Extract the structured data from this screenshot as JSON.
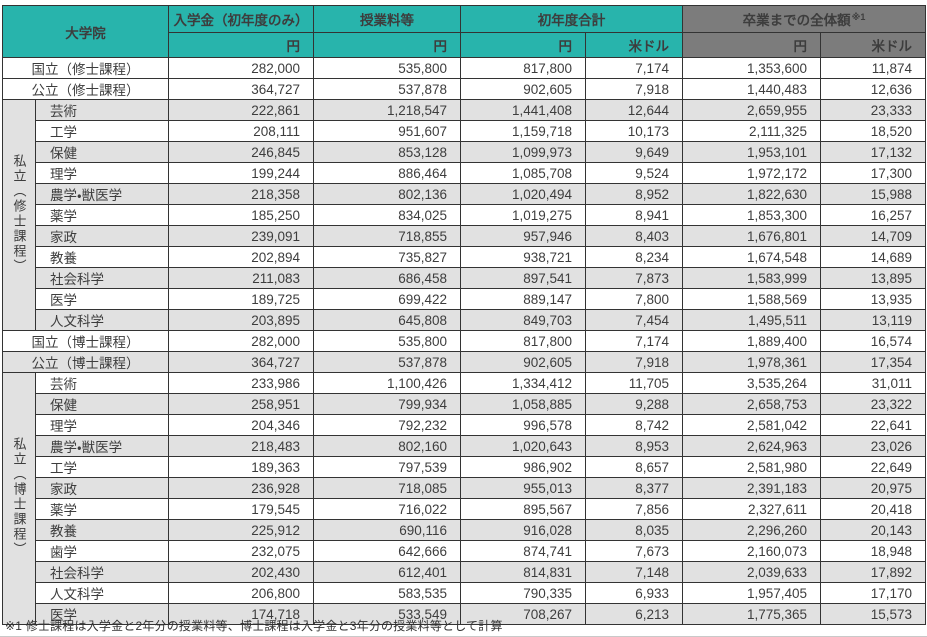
{
  "colors": {
    "teal": "#28b4ac",
    "gray_header": "#7c7c7c",
    "stripe": "#e1e1e1",
    "border": "#333333"
  },
  "table": {
    "header": {
      "graduate_school": "大学院",
      "admission_fee": "入学金（初年度のみ）",
      "tuition": "授業料等",
      "first_year_total": "初年度合計",
      "total_to_graduation": "卒業までの全体額",
      "total_note_ref": "※1",
      "yen": "円",
      "usd": "米ドル"
    },
    "sections": [
      {
        "kind": "single",
        "label": "国立（修士課程）",
        "values": [
          "282,000",
          "535,800",
          "817,800",
          "7,174",
          "1,353,600",
          "11,874"
        ]
      },
      {
        "kind": "single",
        "label": "公立（修士課程）",
        "values": [
          "364,727",
          "537,878",
          "902,605",
          "7,918",
          "1,440,483",
          "12,636"
        ]
      },
      {
        "kind": "group",
        "label": "私立（修士課程）",
        "rows": [
          {
            "label": "芸術",
            "values": [
              "222,861",
              "1,218,547",
              "1,441,408",
              "12,644",
              "2,659,955",
              "23,333"
            ]
          },
          {
            "label": "工学",
            "values": [
              "208,111",
              "951,607",
              "1,159,718",
              "10,173",
              "2,111,325",
              "18,520"
            ]
          },
          {
            "label": "保健",
            "values": [
              "246,845",
              "853,128",
              "1,099,973",
              "9,649",
              "1,953,101",
              "17,132"
            ]
          },
          {
            "label": "理学",
            "values": [
              "199,244",
              "886,464",
              "1,085,708",
              "9,524",
              "1,972,172",
              "17,300"
            ]
          },
          {
            "label": "農学・獣医学",
            "values": [
              "218,358",
              "802,136",
              "1,020,494",
              "8,952",
              "1,822,630",
              "15,988"
            ]
          },
          {
            "label": "薬学",
            "values": [
              "185,250",
              "834,025",
              "1,019,275",
              "8,941",
              "1,853,300",
              "16,257"
            ]
          },
          {
            "label": "家政",
            "values": [
              "239,091",
              "718,855",
              "957,946",
              "8,403",
              "1,676,801",
              "14,709"
            ]
          },
          {
            "label": "教養",
            "values": [
              "202,894",
              "735,827",
              "938,721",
              "8,234",
              "1,674,548",
              "14,689"
            ]
          },
          {
            "label": "社会科学",
            "values": [
              "211,083",
              "686,458",
              "897,541",
              "7,873",
              "1,583,999",
              "13,895"
            ]
          },
          {
            "label": "医学",
            "values": [
              "189,725",
              "699,422",
              "889,147",
              "7,800",
              "1,588,569",
              "13,935"
            ]
          },
          {
            "label": "人文科学",
            "values": [
              "203,895",
              "645,808",
              "849,703",
              "7,454",
              "1,495,511",
              "13,119"
            ]
          }
        ]
      },
      {
        "kind": "single",
        "label": "国立（博士課程）",
        "values": [
          "282,000",
          "535,800",
          "817,800",
          "7,174",
          "1,889,400",
          "16,574"
        ]
      },
      {
        "kind": "single",
        "label": "公立（博士課程）",
        "values": [
          "364,727",
          "537,878",
          "902,605",
          "7,918",
          "1,978,361",
          "17,354"
        ]
      },
      {
        "kind": "group",
        "label": "私立（博士課程）",
        "rows": [
          {
            "label": "芸術",
            "values": [
              "233,986",
              "1,100,426",
              "1,334,412",
              "11,705",
              "3,535,264",
              "31,011"
            ]
          },
          {
            "label": "保健",
            "values": [
              "258,951",
              "799,934",
              "1,058,885",
              "9,288",
              "2,658,753",
              "23,322"
            ]
          },
          {
            "label": "理学",
            "values": [
              "204,346",
              "792,232",
              "996,578",
              "8,742",
              "2,581,042",
              "22,641"
            ]
          },
          {
            "label": "農学・獣医学",
            "values": [
              "218,483",
              "802,160",
              "1,020,643",
              "8,953",
              "2,624,963",
              "23,026"
            ]
          },
          {
            "label": "工学",
            "values": [
              "189,363",
              "797,539",
              "986,902",
              "8,657",
              "2,581,980",
              "22,649"
            ]
          },
          {
            "label": "家政",
            "values": [
              "236,928",
              "718,085",
              "955,013",
              "8,377",
              "2,391,183",
              "20,975"
            ]
          },
          {
            "label": "薬学",
            "values": [
              "179,545",
              "716,022",
              "895,567",
              "7,856",
              "2,327,611",
              "20,418"
            ]
          },
          {
            "label": "教養",
            "values": [
              "225,912",
              "690,116",
              "916,028",
              "8,035",
              "2,296,260",
              "20,143"
            ]
          },
          {
            "label": "歯学",
            "values": [
              "232,075",
              "642,666",
              "874,741",
              "7,673",
              "2,160,073",
              "18,948"
            ]
          },
          {
            "label": "社会科学",
            "values": [
              "202,430",
              "612,401",
              "814,831",
              "7,148",
              "2,039,633",
              "17,892"
            ]
          },
          {
            "label": "人文科学",
            "values": [
              "206,800",
              "583,535",
              "790,335",
              "6,933",
              "1,957,405",
              "17,170"
            ]
          },
          {
            "label": "医学",
            "values": [
              "174,718",
              "533,549",
              "708,267",
              "6,213",
              "1,775,365",
              "15,573"
            ]
          }
        ]
      }
    ]
  },
  "footnote": "※1 修士課程は入学金と2年分の授業料等、博士課程は入学金と3年分の授業料等として計算"
}
